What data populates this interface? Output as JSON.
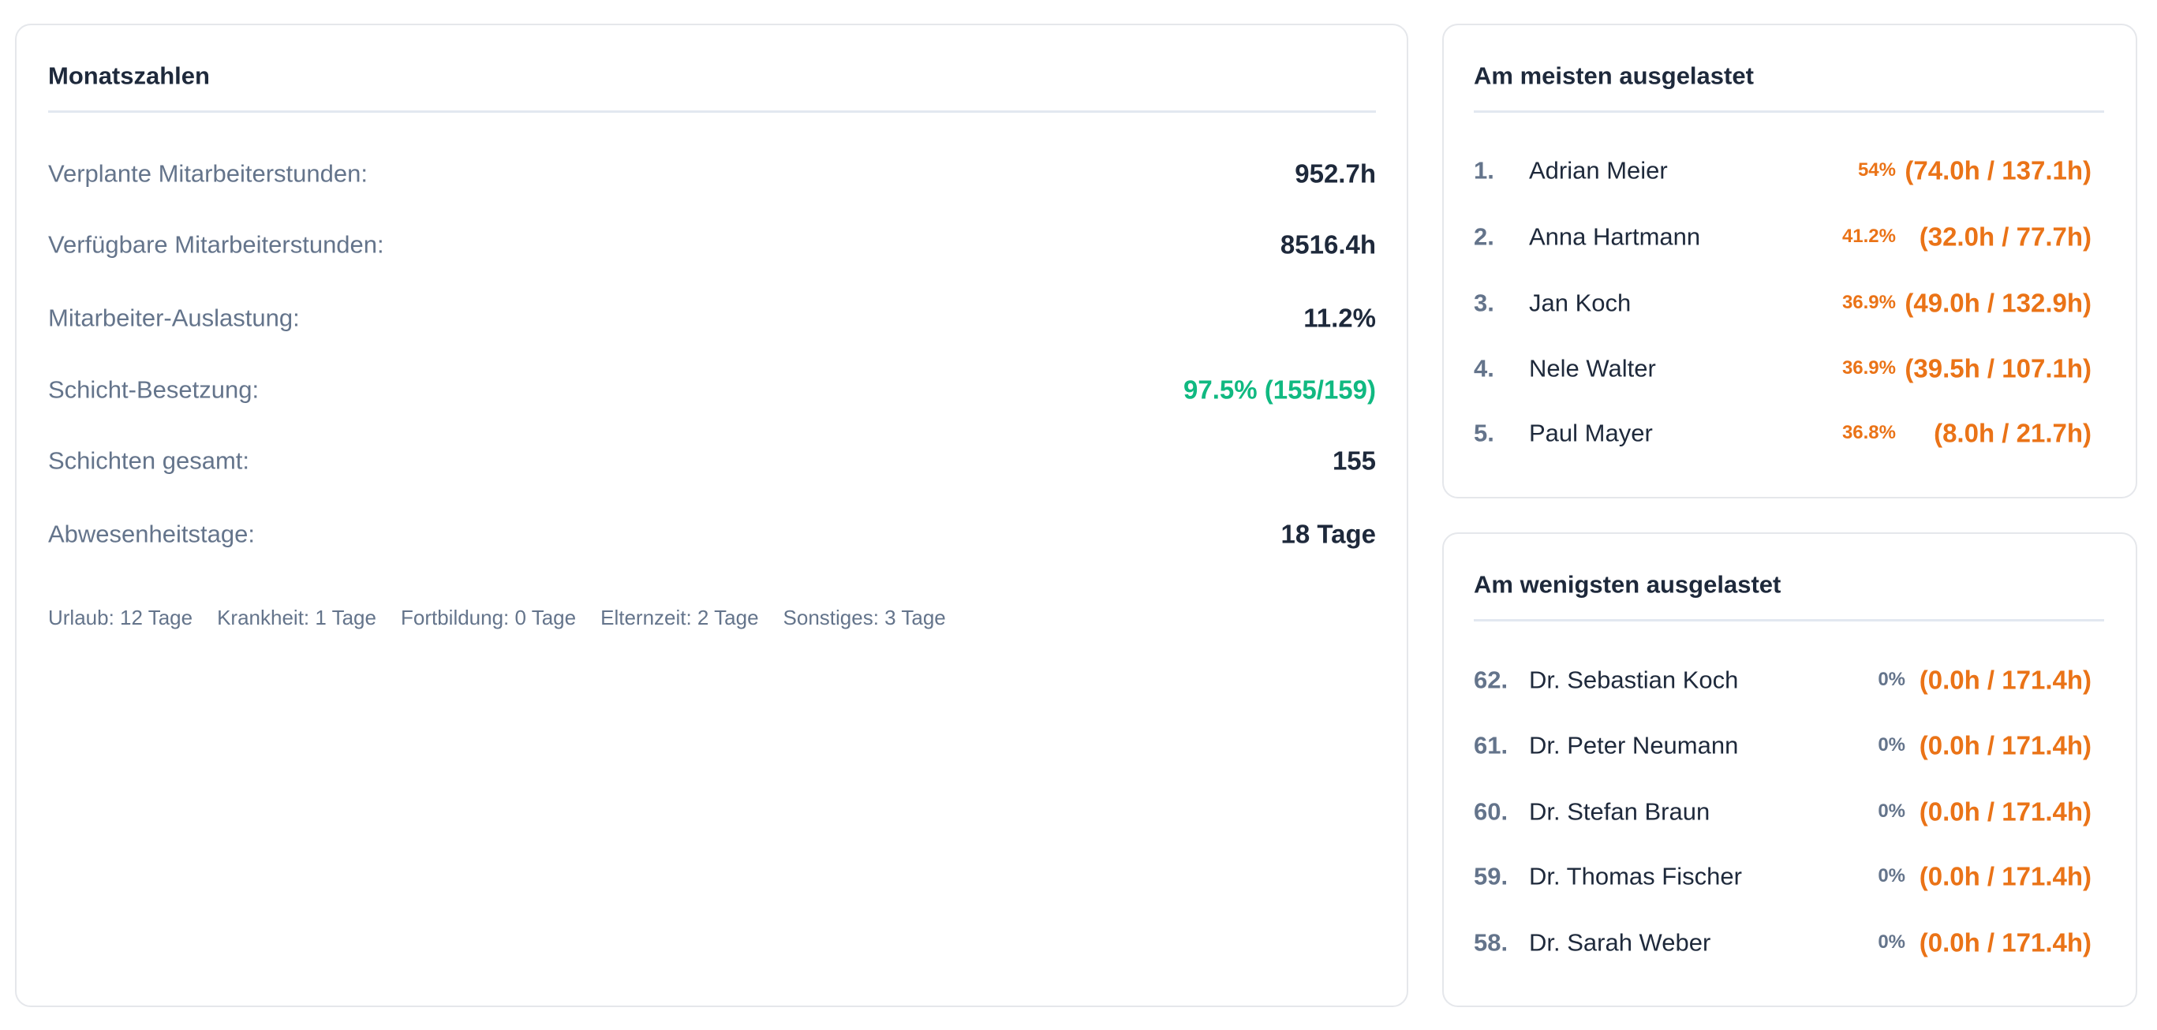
{
  "stats": {
    "title": "Monatszahlen",
    "rows": [
      {
        "label": "Verplante Mitarbeiterstunden:",
        "value": "952.7h"
      },
      {
        "label": "Verfügbare Mitarbeiterstunden:",
        "value": "8516.4h"
      },
      {
        "label": "Mitarbeiter-Auslastung:",
        "value": "11.2%"
      },
      {
        "label": "Schicht-Besetzung:",
        "value": "97.5% (155/159)"
      },
      {
        "label": "Schichten gesamt:",
        "value": "155"
      },
      {
        "label": "Abwesenheitstage:",
        "value": "18 Tage"
      }
    ],
    "breakdown": [
      "Urlaub: 12 Tage",
      "Krankheit: 1 Tage",
      "Fortbildung: 0 Tage",
      "Elternzeit: 2 Tage",
      "Sonstiges: 3 Tage"
    ]
  },
  "most": {
    "title": "Am meisten ausgelastet",
    "rows": [
      {
        "rank": "1.",
        "name": "Adrian Meier",
        "percent": "54%",
        "hours": "(74.0h / 137.1h)"
      },
      {
        "rank": "2.",
        "name": "Anna Hartmann",
        "percent": "41.2%",
        "hours": "(32.0h / 77.7h)"
      },
      {
        "rank": "3.",
        "name": "Jan Koch",
        "percent": "36.9%",
        "hours": "(49.0h / 132.9h)"
      },
      {
        "rank": "4.",
        "name": "Nele Walter",
        "percent": "36.9%",
        "hours": "(39.5h / 107.1h)"
      },
      {
        "rank": "5.",
        "name": "Paul Mayer",
        "percent": "36.8%",
        "hours": "(8.0h / 21.7h)"
      }
    ]
  },
  "least": {
    "title": "Am wenigsten ausgelastet",
    "rows": [
      {
        "rank": "62.",
        "name": "Dr. Sebastian Koch",
        "percent": "0%",
        "hours": "(0.0h / 171.4h)"
      },
      {
        "rank": "61.",
        "name": "Dr. Peter Neumann",
        "percent": "0%",
        "hours": "(0.0h / 171.4h)"
      },
      {
        "rank": "60.",
        "name": "Dr. Stefan Braun",
        "percent": "0%",
        "hours": "(0.0h / 171.4h)"
      },
      {
        "rank": "59.",
        "name": "Dr. Thomas Fischer",
        "percent": "0%",
        "hours": "(0.0h / 171.4h)"
      },
      {
        "rank": "58.",
        "name": "Dr. Sarah Weber",
        "percent": "0%",
        "hours": "(0.0h / 171.4h)"
      }
    ]
  }
}
